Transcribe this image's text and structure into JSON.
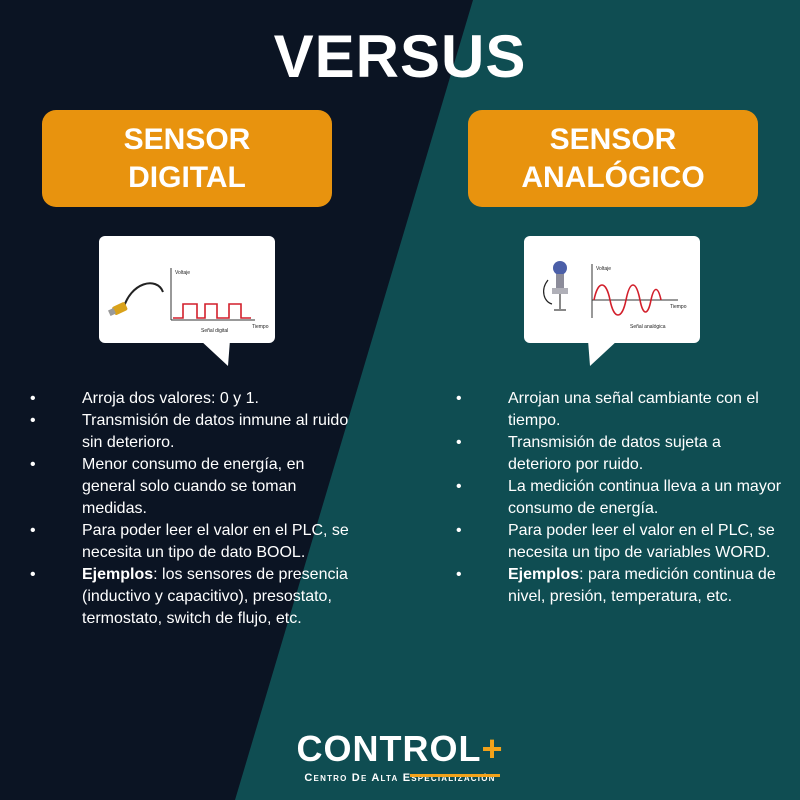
{
  "title": "VERSUS",
  "colors": {
    "left_bg": "#0b1423",
    "right_bg": "#0f4d52",
    "accent": "#e8930e"
  },
  "left": {
    "badge": [
      "SENSOR",
      "DIGITAL"
    ],
    "chart": {
      "y_label": "Voltaje",
      "x_label": "Tiempo",
      "caption": "Señal digital"
    },
    "bullets": [
      {
        "text": "Arroja dos valores: 0 y 1."
      },
      {
        "text": "Transmisión de datos inmune al ruido sin deterioro."
      },
      {
        "text": "Menor consumo de energía, en general solo cuando se toman medidas."
      },
      {
        "text": "Para poder leer el valor en el PLC, se necesita un tipo de dato BOOL."
      },
      {
        "bold": "Ejemplos",
        "text": ": los sensores de presencia (inductivo y capacitivo), presostato, termostato, switch de flujo, etc."
      }
    ]
  },
  "right": {
    "badge": [
      "SENSOR",
      "ANALÓGICO"
    ],
    "chart": {
      "y_label": "Voltaje",
      "x_label": "Tiempo",
      "caption": "Señal analógica"
    },
    "bullets": [
      {
        "text": "Arrojan una señal cambiante con el tiempo."
      },
      {
        "text": "Transmisión de datos sujeta a deterioro por ruido."
      },
      {
        "text": "La medición continua lleva a un mayor consumo de energía."
      },
      {
        "text": "Para poder leer el valor en el PLC, se necesita un tipo de variables WORD."
      },
      {
        "bold": "Ejemplos",
        "text": ": para medición continua de nivel, presión, temperatura, etc."
      }
    ]
  },
  "logo": {
    "brand": "CONTROL",
    "plus": "+",
    "subtitle": "Centro De Alta Especialización"
  },
  "bullet_char": "•"
}
